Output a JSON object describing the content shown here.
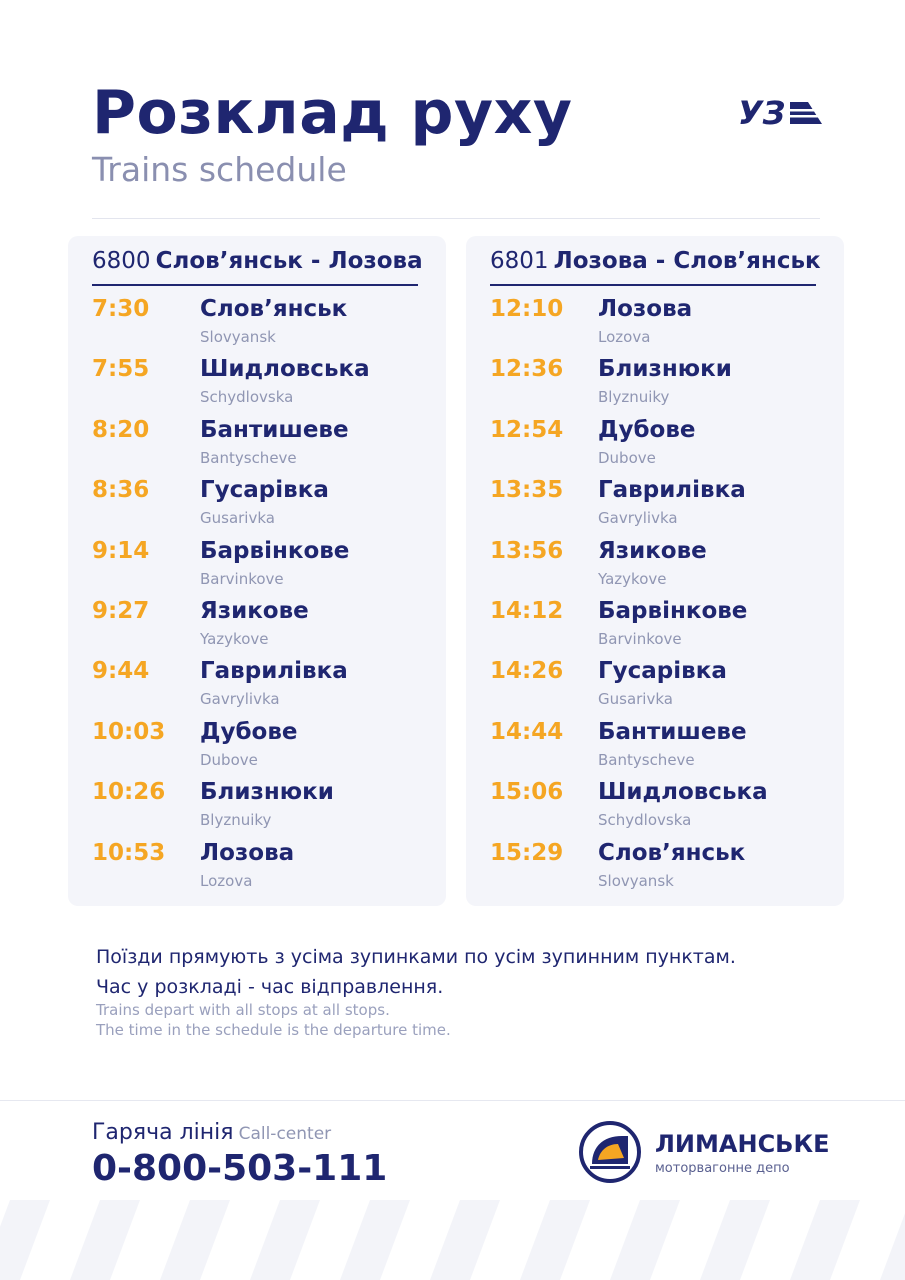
{
  "header": {
    "title": "Розклад руху",
    "subtitle": "Trains schedule",
    "logo_text": "УЗ"
  },
  "routes": [
    {
      "number": "6800",
      "name": "Слов’янськ - Лозова",
      "stops": [
        {
          "time": "7:30",
          "name": "Слов’янськ",
          "latin": "Slovyansk"
        },
        {
          "time": "7:55",
          "name": "Шидловська",
          "latin": "Schydlovska"
        },
        {
          "time": "8:20",
          "name": "Бантишеве",
          "latin": "Bantyscheve"
        },
        {
          "time": "8:36",
          "name": "Гусарівка",
          "latin": "Gusarivka"
        },
        {
          "time": "9:14",
          "name": "Барвінкове",
          "latin": "Barvinkove"
        },
        {
          "time": "9:27",
          "name": "Язикове",
          "latin": "Yazykove"
        },
        {
          "time": "9:44",
          "name": "Гаврилівка",
          "latin": "Gavrylivka"
        },
        {
          "time": "10:03",
          "name": "Дубове",
          "latin": "Dubove"
        },
        {
          "time": "10:26",
          "name": "Близнюки",
          "latin": "Blyznuiky"
        },
        {
          "time": "10:53",
          "name": "Лозова",
          "latin": "Lozova"
        }
      ]
    },
    {
      "number": "6801",
      "name": "Лозова - Слов’янськ",
      "stops": [
        {
          "time": "12:10",
          "name": "Лозова",
          "latin": "Lozova"
        },
        {
          "time": "12:36",
          "name": "Близнюки",
          "latin": "Blyznuiky"
        },
        {
          "time": "12:54",
          "name": "Дубове",
          "latin": "Dubove"
        },
        {
          "time": "13:35",
          "name": "Гаврилівка",
          "latin": "Gavrylivka"
        },
        {
          "time": "13:56",
          "name": "Язикове",
          "latin": "Yazykove"
        },
        {
          "time": "14:12",
          "name": "Барвінкове",
          "latin": "Barvinkove"
        },
        {
          "time": "14:26",
          "name": "Гусарівка",
          "latin": "Gusarivka"
        },
        {
          "time": "14:44",
          "name": "Бантишеве",
          "latin": "Bantyscheve"
        },
        {
          "time": "15:06",
          "name": "Шидловська",
          "latin": "Schydlovska"
        },
        {
          "time": "15:29",
          "name": "Слов’янськ",
          "latin": "Slovyansk"
        }
      ]
    }
  ],
  "notes": {
    "ua_line1": "Поїзди прямують з усіма зупинками по усім зупинним пунктам.",
    "ua_line2": "Час у розкладі - час відправлення.",
    "en_line1": "Trains depart with all stops at all stops.",
    "en_line2": "The time in the schedule is the departure time."
  },
  "footer": {
    "hotline_ua": "Гаряча лінія",
    "hotline_en": "Call-center",
    "phone": "0-800-503-111",
    "depot_name": "ЛИМАНСЬКЕ",
    "depot_sub": "моторвагонне депо"
  },
  "colors": {
    "navy": "#1f2670",
    "accent": "#f5a623",
    "panel": "#f4f5fa",
    "muted": "#9096b3"
  }
}
